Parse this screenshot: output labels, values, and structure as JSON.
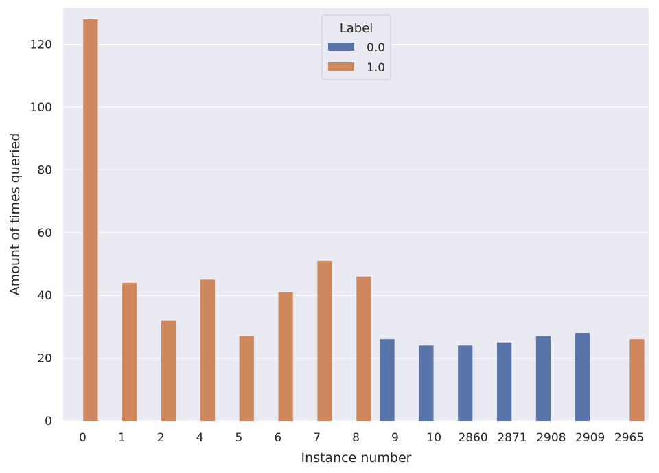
{
  "chart_data": {
    "type": "bar",
    "xlabel": "Instance number",
    "ylabel": "Amount of times queried",
    "categories": [
      "0",
      "1",
      "2",
      "4",
      "5",
      "6",
      "7",
      "8",
      "9",
      "10",
      "2860",
      "2871",
      "2908",
      "2909",
      "2965"
    ],
    "series": [
      {
        "name": "0.0",
        "color": "#5874a8",
        "values": [
          null,
          null,
          null,
          null,
          null,
          null,
          null,
          null,
          26,
          24,
          24,
          25,
          27,
          28,
          null
        ]
      },
      {
        "name": "1.0",
        "color": "#cf875e",
        "values": [
          128,
          44,
          32,
          45,
          27,
          41,
          51,
          46,
          null,
          null,
          null,
          null,
          null,
          null,
          26
        ]
      }
    ],
    "ylim": [
      0,
      131.5
    ],
    "yticks": [
      0,
      20,
      40,
      60,
      80,
      100,
      120
    ],
    "legend": {
      "title": "Label",
      "position": "top-center"
    },
    "grid": true,
    "background": "#eaeaf2"
  }
}
